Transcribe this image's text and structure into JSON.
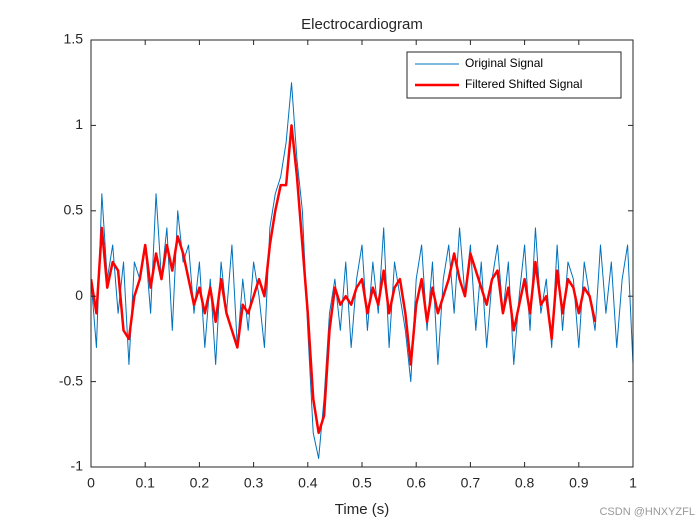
{
  "chart_data": {
    "type": "line",
    "title": "Electrocardiogram",
    "x_label": "Time (s)",
    "annotation": "CSDN @HNXYZFL",
    "xlim": [
      0,
      1
    ],
    "xticks": [
      0,
      0.1,
      0.2,
      0.3,
      0.4,
      0.5,
      0.6,
      0.7,
      0.8,
      0.9,
      1
    ],
    "ylim": [
      -1,
      1.5
    ],
    "yticks": [
      -1,
      -0.5,
      0,
      0.5,
      1,
      1.5
    ],
    "legend": "northeast",
    "series": [
      {
        "name": "Original Signal",
        "color": "#0072bd",
        "width": 1,
        "x": [
          0,
          0.01,
          0.02,
          0.03,
          0.04,
          0.05,
          0.06,
          0.07,
          0.08,
          0.09,
          0.1,
          0.11,
          0.12,
          0.13,
          0.14,
          0.15,
          0.16,
          0.17,
          0.18,
          0.19,
          0.2,
          0.21,
          0.22,
          0.23,
          0.24,
          0.25,
          0.26,
          0.27,
          0.28,
          0.29,
          0.3,
          0.31,
          0.32,
          0.33,
          0.34,
          0.35,
          0.36,
          0.37,
          0.38,
          0.39,
          0.4,
          0.41,
          0.42,
          0.43,
          0.44,
          0.45,
          0.46,
          0.47,
          0.48,
          0.49,
          0.5,
          0.51,
          0.52,
          0.53,
          0.54,
          0.55,
          0.56,
          0.57,
          0.58,
          0.59,
          0.6,
          0.61,
          0.62,
          0.63,
          0.64,
          0.65,
          0.66,
          0.67,
          0.68,
          0.69,
          0.7,
          0.71,
          0.72,
          0.73,
          0.74,
          0.75,
          0.76,
          0.77,
          0.78,
          0.79,
          0.8,
          0.81,
          0.82,
          0.83,
          0.84,
          0.85,
          0.86,
          0.87,
          0.88,
          0.89,
          0.9,
          0.91,
          0.92,
          0.93,
          0.94,
          0.95,
          0.96,
          0.97,
          0.98,
          0.99,
          1
        ],
        "values": [
          0.1,
          -0.3,
          0.6,
          0.1,
          0.3,
          -0.1,
          0.2,
          -0.4,
          0.2,
          0.1,
          0.3,
          -0.1,
          0.6,
          0.1,
          0.4,
          -0.2,
          0.5,
          0.2,
          0.3,
          -0.1,
          0.2,
          -0.3,
          0.1,
          -0.4,
          0.2,
          -0.1,
          0.3,
          -0.3,
          0.1,
          -0.2,
          0.2,
          0,
          -0.3,
          0.4,
          0.6,
          0.7,
          0.9,
          1.25,
          0.8,
          0.5,
          -0.2,
          -0.8,
          -0.95,
          -0.6,
          -0.1,
          0.1,
          -0.2,
          0.2,
          -0.3,
          0.1,
          0.3,
          -0.2,
          0.2,
          -0.1,
          0.4,
          -0.3,
          0.2,
          0,
          -0.2,
          -0.5,
          0.1,
          0.3,
          -0.2,
          0.2,
          -0.4,
          0.1,
          0.3,
          -0.1,
          0.4,
          0,
          0.3,
          -0.2,
          0.2,
          -0.3,
          0.1,
          0.3,
          -0.1,
          0.2,
          -0.4,
          0,
          0.3,
          -0.2,
          0.4,
          -0.1,
          0.1,
          -0.3,
          0.3,
          -0.2,
          0.2,
          0.1,
          -0.3,
          0.2,
          0,
          -0.2,
          0.3,
          -0.1,
          0.2,
          -0.3,
          0.1,
          0.3,
          -0.4
        ]
      },
      {
        "name": "Filtered Shifted Signal",
        "color": "#ff0000",
        "width": 2.5,
        "x": [
          0,
          0.01,
          0.02,
          0.03,
          0.04,
          0.05,
          0.06,
          0.07,
          0.08,
          0.09,
          0.1,
          0.11,
          0.12,
          0.13,
          0.14,
          0.15,
          0.16,
          0.17,
          0.18,
          0.19,
          0.2,
          0.21,
          0.22,
          0.23,
          0.24,
          0.25,
          0.26,
          0.27,
          0.28,
          0.29,
          0.3,
          0.31,
          0.32,
          0.33,
          0.34,
          0.35,
          0.36,
          0.37,
          0.38,
          0.39,
          0.4,
          0.41,
          0.42,
          0.43,
          0.44,
          0.45,
          0.46,
          0.47,
          0.48,
          0.49,
          0.5,
          0.51,
          0.52,
          0.53,
          0.54,
          0.55,
          0.56,
          0.57,
          0.58,
          0.59,
          0.6,
          0.61,
          0.62,
          0.63,
          0.64,
          0.65,
          0.66,
          0.67,
          0.68,
          0.69,
          0.7,
          0.71,
          0.72,
          0.73,
          0.74,
          0.75,
          0.76,
          0.77,
          0.78,
          0.79,
          0.8,
          0.81,
          0.82,
          0.83,
          0.84,
          0.85,
          0.86,
          0.87,
          0.88,
          0.89,
          0.9,
          0.91,
          0.92,
          0.93
        ],
        "values": [
          0.1,
          -0.1,
          0.4,
          0.05,
          0.2,
          0.15,
          -0.2,
          -0.25,
          0,
          0.1,
          0.3,
          0.05,
          0.25,
          0.1,
          0.3,
          0.15,
          0.35,
          0.25,
          0.1,
          -0.05,
          0.05,
          -0.1,
          0.05,
          -0.15,
          0.1,
          -0.1,
          -0.2,
          -0.3,
          -0.05,
          -0.1,
          0,
          0.1,
          0,
          0.3,
          0.5,
          0.65,
          0.65,
          1,
          0.7,
          0.3,
          -0.1,
          -0.6,
          -0.8,
          -0.7,
          -0.2,
          0.05,
          -0.05,
          0,
          -0.05,
          0.05,
          0.1,
          -0.1,
          0.05,
          -0.05,
          0.15,
          -0.1,
          0.05,
          0.1,
          -0.1,
          -0.4,
          -0.05,
          0.1,
          -0.15,
          0.05,
          -0.1,
          0,
          0.1,
          0.25,
          0.1,
          0,
          0.25,
          0.15,
          0.05,
          -0.05,
          0.1,
          0.15,
          -0.1,
          0.05,
          -0.2,
          -0.05,
          0.1,
          -0.1,
          0.2,
          -0.05,
          0,
          -0.25,
          0.15,
          -0.1,
          0.1,
          0.05,
          -0.1,
          0.05,
          0,
          -0.15
        ]
      }
    ]
  }
}
